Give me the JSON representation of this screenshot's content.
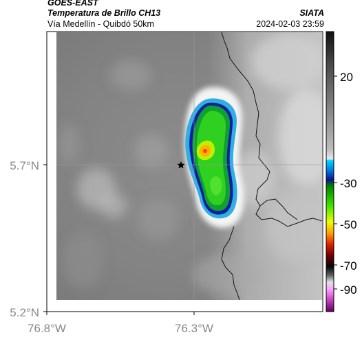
{
  "header": {
    "source": "GOES-EAST",
    "product": "Temperatura de Brillo CH13",
    "organization": "SIATA",
    "location": "Vía Medellín - Quibdó 50km",
    "datetime": "2024-02-03 23:59"
  },
  "map": {
    "lon_ticks": [
      "76.8°W",
      "76.3°W"
    ],
    "lat_ticks": [
      "5.7°N",
      "5.2°N"
    ],
    "marker": "star-icon",
    "colors": {
      "background": "#ffffff",
      "grid": "#999999",
      "border": "#000000"
    }
  },
  "colorbar": {
    "tick_labels": [
      "20",
      "-30",
      "-50",
      "-70",
      "-90"
    ],
    "colors": [
      "#00c8ff",
      "#0080ff",
      "#0010a0",
      "#00a000",
      "#40ff00",
      "#e0ff00",
      "#ffd000",
      "#ff6000",
      "#c00000",
      "#500000",
      "#000000",
      "#ffffff",
      "#ff80ff",
      "#800080"
    ]
  }
}
